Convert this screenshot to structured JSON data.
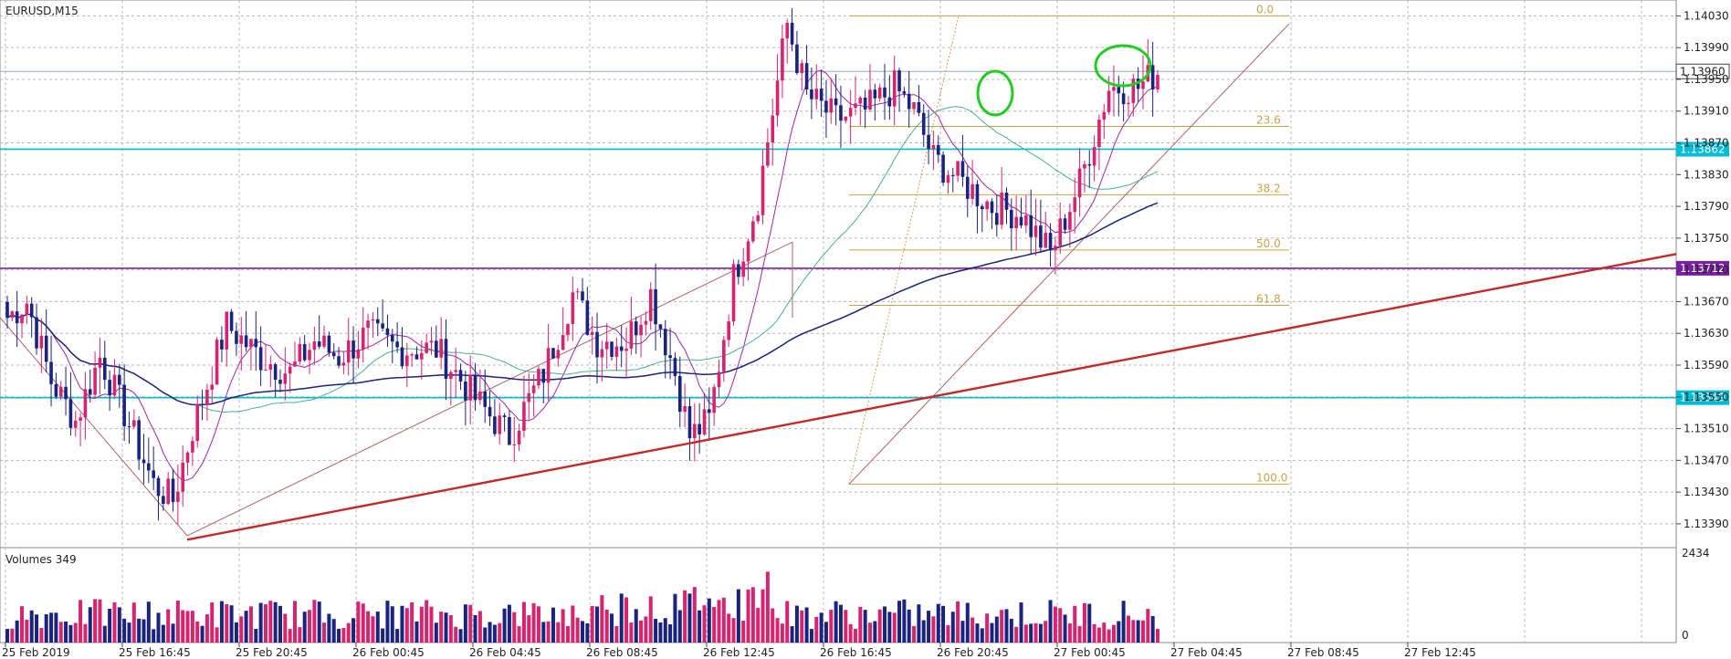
{
  "chart_data": {
    "type": "candlestick",
    "title": "EURUSD,M15",
    "price_axis": {
      "range": [
        1.1336,
        1.1405
      ],
      "ticks": [
        1.1403,
        1.1399,
        1.1395,
        1.1391,
        1.1387,
        1.1383,
        1.1379,
        1.1375,
        1.1371,
        1.1367,
        1.1363,
        1.1359,
        1.1355,
        1.1351,
        1.1347,
        1.1343,
        1.1339
      ],
      "tick_labels": [
        "1.14030",
        "1.13990",
        "1.13950",
        "1.13910",
        "1.13870",
        "1.13830",
        "1.13790",
        "1.13750",
        "1.13710",
        "1.13670",
        "1.13630",
        "1.13590",
        "1.13550",
        "1.13510",
        "1.13470",
        "1.13430",
        "1.13390"
      ]
    },
    "time_axis": {
      "labels": [
        "25 Feb 2019",
        "25 Feb 16:45",
        "25 Feb 20:45",
        "26 Feb 00:45",
        "26 Feb 04:45",
        "26 Feb 08:45",
        "26 Feb 12:45",
        "26 Feb 16:45",
        "26 Feb 20:45",
        "27 Feb 00:45",
        "27 Feb 04:45",
        "27 Feb 08:45",
        "27 Feb 12:45"
      ]
    },
    "grid": true,
    "current_price": {
      "value": 1.1396,
      "label": "1.13960"
    },
    "horizontal_levels": [
      {
        "value": 1.13862,
        "label": "1.13862",
        "color": "#00bcd4"
      },
      {
        "value": 1.13712,
        "label": "1.13712",
        "color": "#7b1fa2"
      },
      {
        "value": 1.13549,
        "label": "1.13549",
        "color": "#00bcd4"
      }
    ],
    "fibonacci": {
      "high": 1.1403,
      "low": 1.1344,
      "levels": [
        {
          "ratio": 0.0,
          "label": "0.0"
        },
        {
          "ratio": 0.236,
          "label": "23.6"
        },
        {
          "ratio": 0.382,
          "label": "38.2"
        },
        {
          "ratio": 0.5,
          "label": "50.0"
        },
        {
          "ratio": 0.618,
          "label": "61.8"
        },
        {
          "ratio": 1.0,
          "label": "100.0"
        }
      ]
    },
    "trendline": {
      "from": [
        0,
        1.1337
      ],
      "to": [
        1.0,
        1.1373
      ],
      "color": "#c62828"
    },
    "volumes": {
      "label": "Volumes 349",
      "axis_max_label": "2434",
      "axis_min_label": "0"
    },
    "colors": {
      "bull": "#d6246e",
      "bear": "#1a237e",
      "ma_fast": "#9c27b0",
      "ma_mid": "#4caf8f",
      "ma_slow": "#1a237e",
      "fib": "#c9a34c",
      "channel": "#b0626a",
      "highlight": "#22cc22"
    }
  }
}
